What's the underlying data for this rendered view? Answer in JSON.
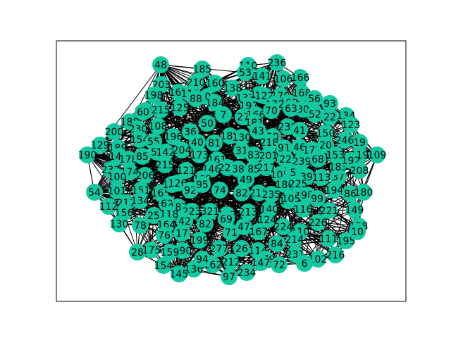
{
  "diagram": {
    "type": "network-graph",
    "frame": true,
    "node_color": "#11c9a0",
    "edge_color": "#000000",
    "label_color": "#000000",
    "nodes": [
      {
        "id": "48"
      },
      {
        "id": "185"
      },
      {
        "id": "110"
      },
      {
        "id": "236"
      },
      {
        "id": "53"
      },
      {
        "id": "141"
      },
      {
        "id": "166"
      },
      {
        "id": "106"
      },
      {
        "id": "203"
      },
      {
        "id": "210"
      },
      {
        "id": "160"
      },
      {
        "id": "138"
      },
      {
        "id": "198"
      },
      {
        "id": "165"
      },
      {
        "id": "111"
      },
      {
        "id": "103"
      },
      {
        "id": "88"
      },
      {
        "id": "133"
      },
      {
        "id": "152"
      },
      {
        "id": "122"
      },
      {
        "id": "170"
      },
      {
        "id": "168"
      },
      {
        "id": "56"
      },
      {
        "id": "93"
      },
      {
        "id": "99"
      },
      {
        "id": "60"
      },
      {
        "id": "215"
      },
      {
        "id": "125"
      },
      {
        "id": "184"
      },
      {
        "id": "197"
      },
      {
        "id": "192"
      },
      {
        "id": "172"
      },
      {
        "id": "30"
      },
      {
        "id": "52"
      },
      {
        "id": "22"
      },
      {
        "id": "134"
      },
      {
        "id": "188"
      },
      {
        "id": "230"
      },
      {
        "id": "108"
      },
      {
        "id": "7"
      },
      {
        "id": "50"
      },
      {
        "id": "27"
      },
      {
        "id": "166b"
      },
      {
        "id": "70"
      },
      {
        "id": "63"
      },
      {
        "id": "123"
      },
      {
        "id": "200"
      },
      {
        "id": "154"
      },
      {
        "id": "196"
      },
      {
        "id": "36"
      },
      {
        "id": "181"
      },
      {
        "id": "43"
      },
      {
        "id": "238"
      },
      {
        "id": "41"
      },
      {
        "id": "150"
      },
      {
        "id": "19"
      },
      {
        "id": "129"
      },
      {
        "id": "189"
      },
      {
        "id": "55"
      },
      {
        "id": "40"
      },
      {
        "id": "81"
      },
      {
        "id": "182"
      },
      {
        "id": "130b"
      },
      {
        "id": "90"
      },
      {
        "id": "218"
      },
      {
        "id": "91"
      },
      {
        "id": "46"
      },
      {
        "id": "177"
      },
      {
        "id": "20"
      },
      {
        "id": "246"
      },
      {
        "id": "190"
      },
      {
        "id": "144"
      },
      {
        "id": "178"
      },
      {
        "id": "85"
      },
      {
        "id": "57"
      },
      {
        "id": "142"
      },
      {
        "id": "204"
      },
      {
        "id": "173"
      },
      {
        "id": "161"
      },
      {
        "id": "31"
      },
      {
        "id": "83"
      },
      {
        "id": "201"
      },
      {
        "id": "22b"
      },
      {
        "id": "239"
      },
      {
        "id": "68"
      },
      {
        "id": "153"
      },
      {
        "id": "119"
      },
      {
        "id": "109"
      },
      {
        "id": "232"
      },
      {
        "id": "174"
      },
      {
        "id": "100"
      },
      {
        "id": "206"
      },
      {
        "id": "215b"
      },
      {
        "id": "121"
      },
      {
        "id": "146"
      },
      {
        "id": "220"
      },
      {
        "id": "38"
      },
      {
        "id": "85b"
      },
      {
        "id": "217"
      },
      {
        "id": "105"
      },
      {
        "id": "5"
      },
      {
        "id": "39"
      },
      {
        "id": "113"
      },
      {
        "id": "37"
      },
      {
        "id": "183"
      },
      {
        "id": "192b"
      },
      {
        "id": "208"
      },
      {
        "id": "54"
      },
      {
        "id": "101"
      },
      {
        "id": "151"
      },
      {
        "id": "165b"
      },
      {
        "id": "136"
      },
      {
        "id": "126"
      },
      {
        "id": "92"
      },
      {
        "id": "109b"
      },
      {
        "id": "95"
      },
      {
        "id": "74"
      },
      {
        "id": "82"
      },
      {
        "id": "49"
      },
      {
        "id": "211"
      },
      {
        "id": "235"
      },
      {
        "id": "186"
      },
      {
        "id": "225"
      },
      {
        "id": "98"
      },
      {
        "id": "99b"
      },
      {
        "id": "194"
      },
      {
        "id": "86"
      },
      {
        "id": "180"
      },
      {
        "id": "112"
      },
      {
        "id": "217b"
      },
      {
        "id": "134b"
      },
      {
        "id": "62"
      },
      {
        "id": "187"
      },
      {
        "id": "223"
      },
      {
        "id": "321"
      },
      {
        "id": "213"
      },
      {
        "id": "140"
      },
      {
        "id": "102"
      },
      {
        "id": "105b"
      },
      {
        "id": "116"
      },
      {
        "id": "221"
      },
      {
        "id": "149"
      },
      {
        "id": "156"
      },
      {
        "id": "25"
      },
      {
        "id": "118"
      },
      {
        "id": "42"
      },
      {
        "id": "82b"
      },
      {
        "id": "122b"
      },
      {
        "id": "69"
      },
      {
        "id": "47"
      },
      {
        "id": "124"
      },
      {
        "id": "226"
      },
      {
        "id": "158"
      },
      {
        "id": "130"
      },
      {
        "id": "78"
      },
      {
        "id": "164"
      },
      {
        "id": "76"
      },
      {
        "id": "17"
      },
      {
        "id": "71"
      },
      {
        "id": "167"
      },
      {
        "id": "224"
      },
      {
        "id": "110b"
      },
      {
        "id": "111b"
      },
      {
        "id": "195"
      },
      {
        "id": "10"
      },
      {
        "id": "199"
      },
      {
        "id": "214"
      },
      {
        "id": "84"
      },
      {
        "id": "26"
      },
      {
        "id": "114"
      },
      {
        "id": "231"
      },
      {
        "id": "102b"
      },
      {
        "id": "216"
      },
      {
        "id": "28"
      },
      {
        "id": "175"
      },
      {
        "id": "190b"
      },
      {
        "id": "159"
      },
      {
        "id": "179"
      },
      {
        "id": "277"
      },
      {
        "id": "72"
      },
      {
        "id": "6"
      },
      {
        "id": "154b"
      },
      {
        "id": "136b"
      },
      {
        "id": "162"
      },
      {
        "id": "212"
      },
      {
        "id": "97"
      },
      {
        "id": "234"
      },
      {
        "id": "145"
      },
      {
        "id": "94"
      },
      {
        "id": "147"
      }
    ]
  }
}
